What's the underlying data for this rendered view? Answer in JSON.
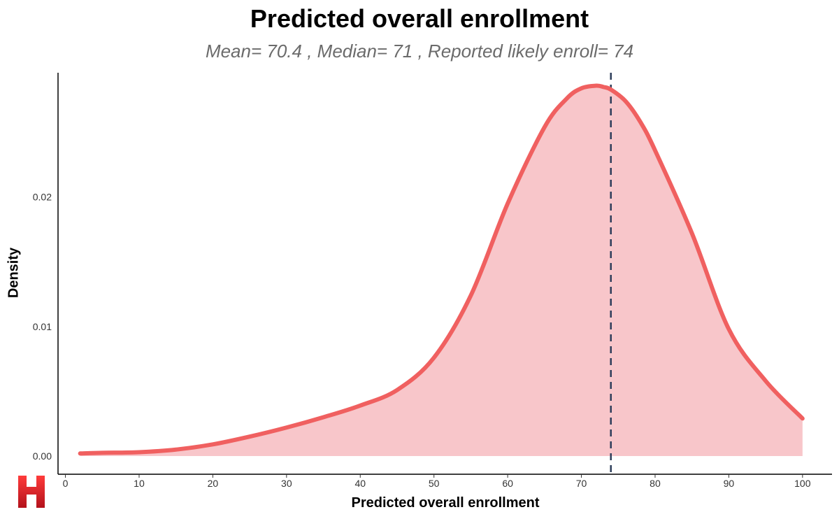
{
  "chart_data": {
    "type": "area",
    "title": "Predicted overall enrollment",
    "subtitle": "Mean= 70.4 , Median= 71 , Reported likely enroll= 74",
    "xlabel": "Predicted overall enrollment",
    "ylabel": "Density",
    "xlim": [
      -1,
      104
    ],
    "ylim": [
      0,
      0.0296
    ],
    "x_ticks": [
      0,
      10,
      20,
      30,
      40,
      50,
      60,
      70,
      80,
      90,
      100
    ],
    "y_ticks": [
      0.0,
      0.01,
      0.02
    ],
    "y_tick_labels": [
      "0.00",
      "0.01",
      "0.02"
    ],
    "grid": false,
    "series": [
      {
        "x": [
          2,
          5,
          10,
          15,
          20,
          25,
          30,
          35,
          40,
          45,
          50,
          55,
          60,
          65,
          68,
          70,
          72,
          73,
          74,
          76,
          78,
          80,
          85,
          90,
          95,
          100
        ],
        "values": [
          0.0002,
          0.00025,
          0.0003,
          0.0005,
          0.0009,
          0.0015,
          0.0022,
          0.003,
          0.0039,
          0.0051,
          0.0076,
          0.0124,
          0.0195,
          0.0254,
          0.0276,
          0.0284,
          0.0286,
          0.0285,
          0.0283,
          0.0274,
          0.0258,
          0.0236,
          0.0172,
          0.0098,
          0.0058,
          0.0029
        ]
      }
    ],
    "reference_line": {
      "x": 74,
      "style": "dashed",
      "color": "#2e3e5a"
    },
    "colors": {
      "line": "#f06060",
      "fill": "#f8c6ca",
      "axis": "#000000"
    }
  },
  "logo": {
    "text": "H",
    "color": "#e0202a"
  }
}
